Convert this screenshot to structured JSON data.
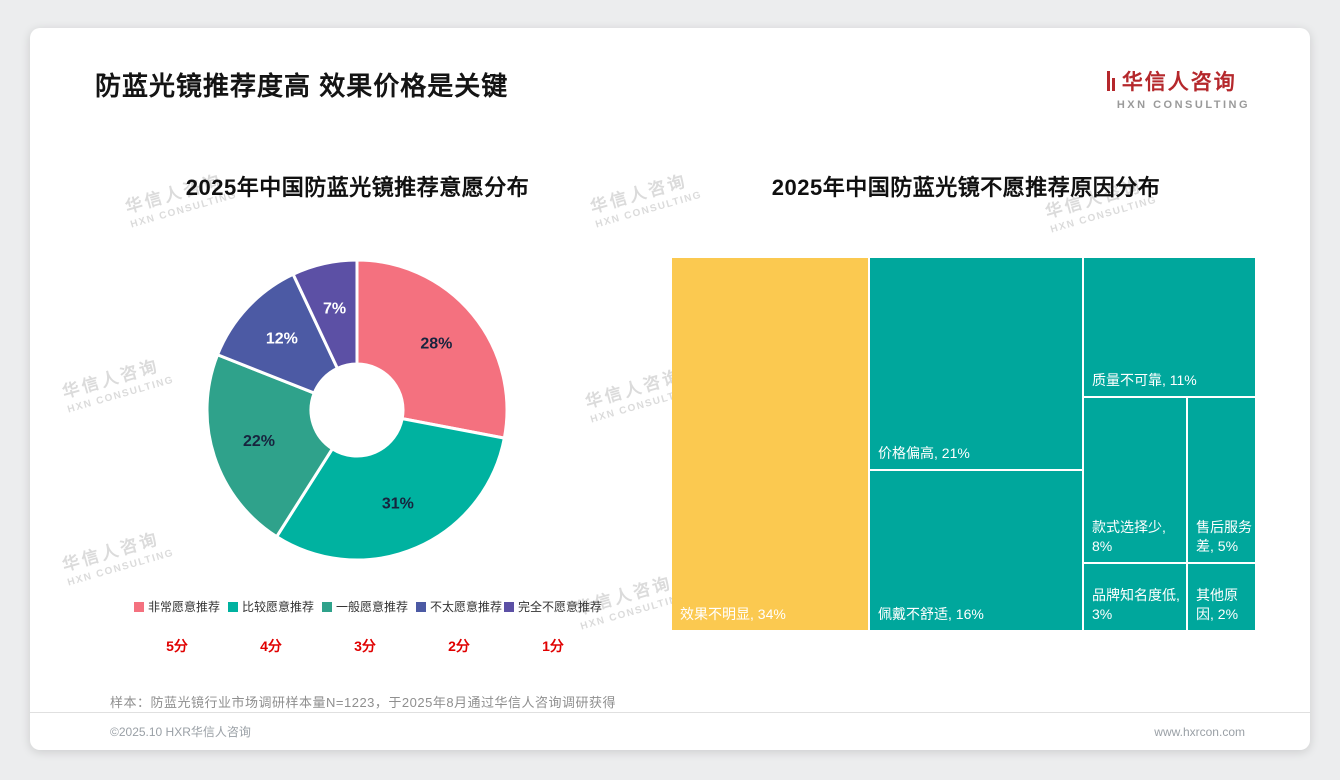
{
  "page": {
    "title": "防蓝光镜推荐度高 效果价格是关键",
    "sample_note": "样本：防蓝光镜行业市场调研样本量N=1223，于2025年8月通过华信人咨询调研获得",
    "footer": {
      "left": "©2025.10 HXR华信人咨询",
      "right": "www.hxrcon.com"
    }
  },
  "brand": {
    "logo_cn": "华信人咨询",
    "logo_en": "HXN CONSULTING",
    "accent_red": "#B5282C"
  },
  "watermark": {
    "cn": "华信人咨询",
    "en": "HXN CONSULTING"
  },
  "chart_data": [
    {
      "type": "pie",
      "donut": true,
      "title": "2025年中国防蓝光镜推荐意愿分布",
      "labels": [
        "非常愿意推荐",
        "比较愿意推荐",
        "一般愿意推荐",
        "不太愿意推荐",
        "完全不愿意推荐"
      ],
      "values": [
        28,
        31,
        22,
        12,
        7
      ],
      "value_labels": [
        "28%",
        "31%",
        "22%",
        "12%",
        "7%"
      ],
      "scores": [
        "5分",
        "4分",
        "3分",
        "2分",
        "1分"
      ],
      "colors": [
        "#F4717F",
        "#00B2A0",
        "#2FA28B",
        "#4C5AA4",
        "#5C50A5"
      ],
      "label_colors": [
        "#17243E",
        "#17243E",
        "#17243E",
        "#FFFFFF",
        "#FFFFFF"
      ],
      "legend_position": "bottom",
      "start_angle_deg": 0,
      "direction": "clockwise"
    },
    {
      "type": "treemap",
      "title": "2025年中国防蓝光镜不愿推荐原因分布",
      "items": [
        {
          "label": "效果不明显",
          "value": 34,
          "display": "效果不明显, 34%",
          "color": "#FBC950"
        },
        {
          "label": "价格偏高",
          "value": 21,
          "display": "价格偏高, 21%",
          "color": "#00A79C"
        },
        {
          "label": "佩戴不舒适",
          "value": 16,
          "display": "佩戴不舒适, 16%",
          "color": "#00A79C"
        },
        {
          "label": "质量不可靠",
          "value": 11,
          "display": "质量不可靠, 11%",
          "color": "#00A79C"
        },
        {
          "label": "款式选择少",
          "value": 8,
          "display": "款式选择少, 8%",
          "color": "#00A79C"
        },
        {
          "label": "售后服务差",
          "value": 5,
          "display": "售后服务差, 5%",
          "color": "#00A79C"
        },
        {
          "label": "品牌知名度低",
          "value": 3,
          "display": "品牌知名度低, 3%",
          "color": "#00A79C"
        },
        {
          "label": "其他原因",
          "value": 2,
          "display": "其他原因, 2%",
          "color": "#00A79C"
        }
      ]
    }
  ]
}
